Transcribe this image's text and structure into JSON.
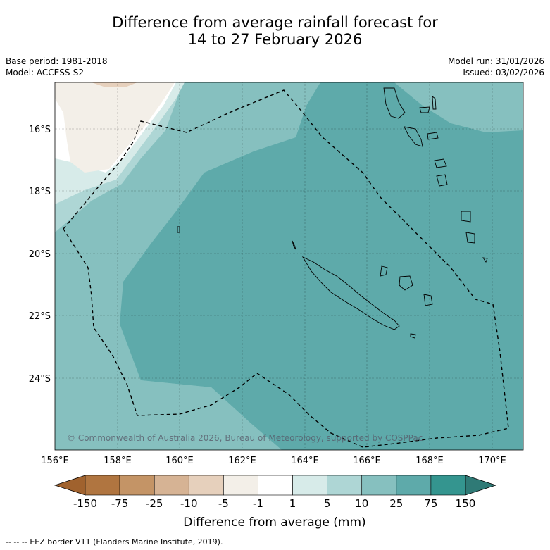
{
  "title": {
    "line1": "Difference from average rainfall forecast for",
    "line2": "14 to 27 February 2026"
  },
  "meta": {
    "base_period": "Base period: 1981-2018",
    "model": "Model: ACCESS-S2",
    "model_run": "Model run: 31/01/2026",
    "issued": "Issued: 03/02/2026"
  },
  "map": {
    "lat_labels": [
      "16°S",
      "18°S",
      "20°S",
      "22°S",
      "24°S"
    ],
    "lon_labels": [
      "156°E",
      "158°E",
      "160°E",
      "162°E",
      "164°E",
      "166°E",
      "168°E",
      "170°E"
    ],
    "copyright": "© Commonwealth of Australia 2026, Bureau of Meteorology, supported by COSPPac"
  },
  "colorbar": {
    "tick_labels": [
      "-150",
      "-75",
      "-25",
      "-10",
      "-5",
      "-1",
      "1",
      "5",
      "10",
      "25",
      "75",
      "150"
    ],
    "colors": [
      "#a0622e",
      "#b07540",
      "#c49466",
      "#d6b394",
      "#e6d0bc",
      "#f3efe8",
      "#ffffff",
      "#d7ebe9",
      "#aed6d5",
      "#86c0bf",
      "#5eaaaa",
      "#34958f",
      "#2f7a76"
    ],
    "label": "Difference from average (mm)"
  },
  "legend": {
    "eez_symbol": "--  --  --",
    "eez_text": "EEZ border V11 (Flanders Marine Institute, 2019)."
  }
}
